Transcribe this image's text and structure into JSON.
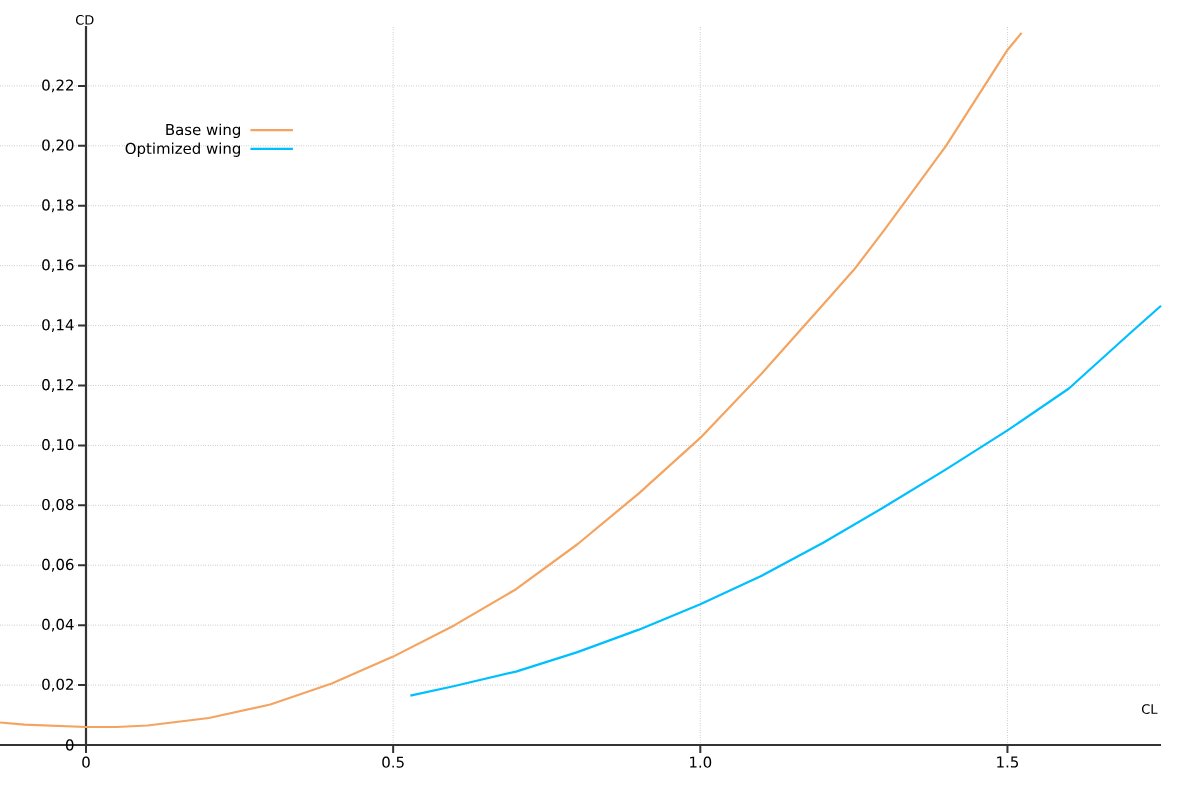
{
  "chart_data": {
    "type": "line",
    "xlabel": "CL",
    "ylabel": "CD",
    "xlim": [
      -0.14,
      1.75
    ],
    "ylim": [
      0,
      0.24
    ],
    "xticks": [
      {
        "value": 0,
        "label": "0"
      },
      {
        "value": 0.5,
        "label": "0.5"
      },
      {
        "value": 1.0,
        "label": "1.0"
      },
      {
        "value": 1.5,
        "label": "1.5"
      }
    ],
    "yticks": [
      {
        "value": 0,
        "label": "0"
      },
      {
        "value": 0.02,
        "label": "0,02"
      },
      {
        "value": 0.04,
        "label": "0,04"
      },
      {
        "value": 0.06,
        "label": "0,06"
      },
      {
        "value": 0.08,
        "label": "0,08"
      },
      {
        "value": 0.1,
        "label": "0,10"
      },
      {
        "value": 0.12,
        "label": "0,12"
      },
      {
        "value": 0.14,
        "label": "0,14"
      },
      {
        "value": 0.16,
        "label": "0,16"
      },
      {
        "value": 0.18,
        "label": "0,18"
      },
      {
        "value": 0.2,
        "label": "0,20"
      },
      {
        "value": 0.22,
        "label": "0,22"
      }
    ],
    "grid": true,
    "legend": "top left",
    "marker": "none",
    "line_style": "solid",
    "series": [
      {
        "name": "Base wing",
        "color": "#f4a460",
        "x": [
          -0.14,
          -0.1,
          0,
          0.05,
          0.1,
          0.2,
          0.3,
          0.4,
          0.5,
          0.6,
          0.7,
          0.8,
          0.9,
          1.0,
          1.1,
          1.2,
          1.25,
          1.3,
          1.4,
          1.5,
          1.523
        ],
        "values": [
          0.0075,
          0.0068,
          0.006,
          0.006,
          0.0065,
          0.009,
          0.0135,
          0.0205,
          0.0295,
          0.04,
          0.052,
          0.067,
          0.084,
          0.1025,
          0.124,
          0.147,
          0.1586,
          0.172,
          0.2,
          0.232,
          0.2377
        ]
      },
      {
        "name": "Optimized wing",
        "color": "#00bfff",
        "x": [
          0.528,
          0.6,
          0.7,
          0.8,
          0.9,
          1.0,
          1.1,
          1.2,
          1.3,
          1.4,
          1.5,
          1.6,
          1.7,
          1.75
        ],
        "values": [
          0.0165,
          0.0197,
          0.0245,
          0.031,
          0.0385,
          0.047,
          0.0565,
          0.0675,
          0.0795,
          0.092,
          0.105,
          0.119,
          0.1375,
          0.1466
        ]
      }
    ]
  }
}
